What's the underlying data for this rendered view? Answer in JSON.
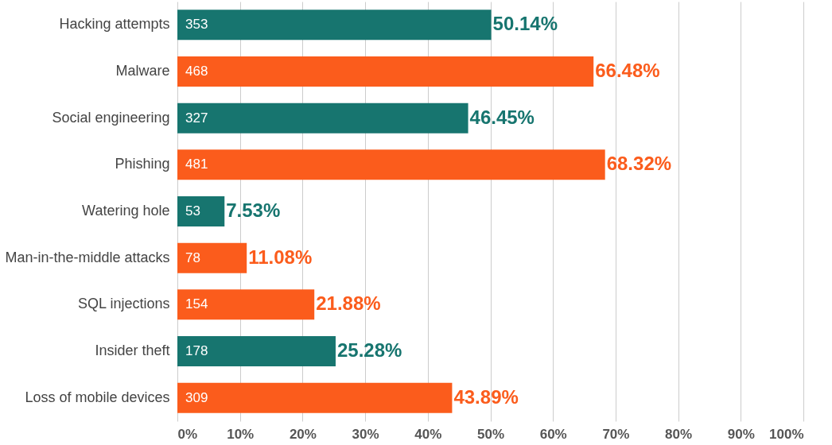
{
  "chart_data": {
    "type": "bar",
    "orientation": "horizontal",
    "categories": [
      "Hacking attempts",
      "Malware",
      "Social engineering",
      "Phishing",
      "Watering hole",
      "Man-in-the-middle attacks",
      "SQL injections",
      "Insider theft",
      "Loss of mobile devices"
    ],
    "values": [
      50.14,
      66.48,
      46.45,
      68.32,
      7.53,
      11.08,
      21.88,
      25.28,
      43.89
    ],
    "colors": [
      "#17756f",
      "#fb5c1c",
      "#17756f",
      "#fb5c1c",
      "#17756f",
      "#fb5c1c",
      "#fb5c1c",
      "#17756f",
      "#fb5c1c"
    ],
    "value_labels": [
      "50.14%",
      "66.48%",
      "46.45%",
      "68.32%",
      "7.53%",
      "11.08%",
      "21.88%",
      "25.28%",
      "43.89%"
    ],
    "annotations": [
      {
        "text": "353",
        "y": "Hacking attempts"
      },
      {
        "text": "468",
        "y": "Malware"
      },
      {
        "text": "327",
        "y": "Social engineering"
      },
      {
        "text": "481",
        "y": "Phishing"
      },
      {
        "text": "53",
        "y": "Watering hole"
      },
      {
        "text": "78",
        "y": "Man-in-the-middle attacks"
      },
      {
        "text": "154",
        "y": "SQL injections"
      },
      {
        "text": "178",
        "y": "Insider theft"
      },
      {
        "text": "309",
        "y": "Loss of mobile devices"
      }
    ],
    "xlim": [
      0,
      100
    ],
    "xticks": [
      {
        "value": 0,
        "label": "0%"
      },
      {
        "value": 10,
        "label": "10%"
      },
      {
        "value": 20,
        "label": "20%"
      },
      {
        "value": 30,
        "label": "30%"
      },
      {
        "value": 40,
        "label": "40%"
      },
      {
        "value": 50,
        "label": "50%"
      },
      {
        "value": 60,
        "label": "60%"
      },
      {
        "value": 70,
        "label": "70%"
      },
      {
        "value": 80,
        "label": "80%"
      },
      {
        "value": 90,
        "label": "90%"
      },
      {
        "value": 100,
        "label": "100%"
      }
    ],
    "grid": "x"
  }
}
